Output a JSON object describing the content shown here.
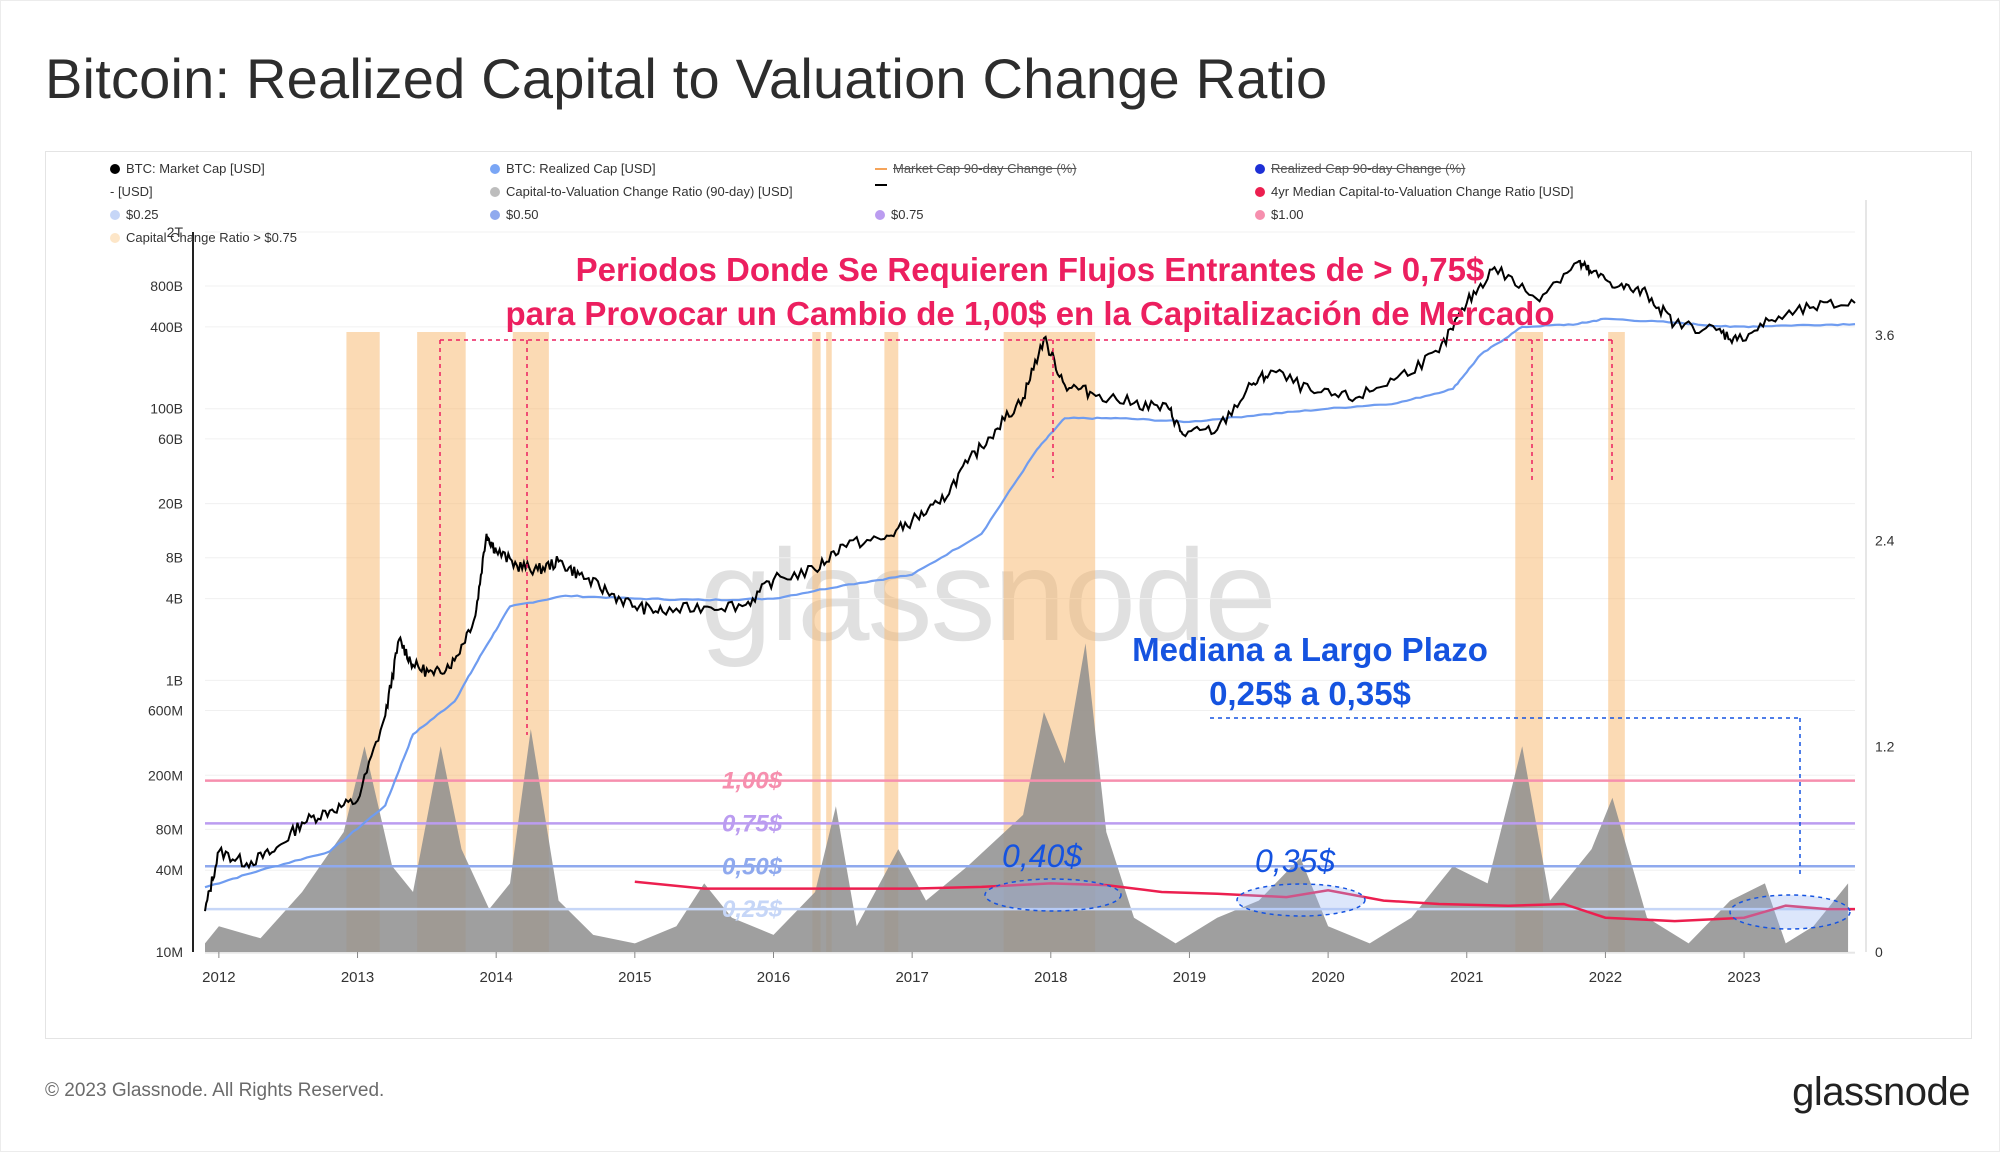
{
  "page": {
    "title": "Bitcoin: Realized Capital to Valuation Change Ratio",
    "footer_copyright": "© 2023 Glassnode. All Rights Reserved.",
    "footer_logo": "glassnode",
    "watermark": "glassnode"
  },
  "legend": [
    {
      "label": "BTC: Market Cap [USD]",
      "color": "#000000",
      "marker": "dot",
      "struck": false
    },
    {
      "label": "BTC: Realized Cap [USD]",
      "color": "#7aa6f5",
      "marker": "dot",
      "struck": false
    },
    {
      "label": "Market Cap 90-day Change (%)",
      "color": "#f5a45a",
      "marker": "line",
      "struck": true
    },
    {
      "label": "Realized Cap 90-day Change (%)",
      "color": "#1d2fd6",
      "marker": "dot",
      "struck": true
    },
    {
      "label": "- [USD]",
      "color": "#ffffff",
      "marker": "none",
      "struck": false
    },
    {
      "label": "Capital-to-Valuation Change Ratio (90-day) [USD]",
      "color": "#bdbdbd",
      "marker": "dot",
      "struck": false
    },
    {
      "label": "",
      "color": "#000000",
      "marker": "line",
      "struck": false
    },
    {
      "label": "4yr Median Capital-to-Valuation Change Ratio [USD]",
      "color": "#ec1f4f",
      "marker": "dot",
      "struck": false
    },
    {
      "label": "$0.25",
      "color": "#c6d6f7",
      "marker": "dot",
      "struck": false
    },
    {
      "label": "$0.50",
      "color": "#8fa9ee",
      "marker": "dot",
      "struck": false
    },
    {
      "label": "$0.75",
      "color": "#bb9cf0",
      "marker": "dot",
      "struck": false
    },
    {
      "label": "$1.00",
      "color": "#f68fae",
      "marker": "dot",
      "struck": false
    },
    {
      "label": "Capital Change Ratio > $0.75",
      "color": "#fde6c8",
      "marker": "dot",
      "struck": false
    }
  ],
  "annotations": {
    "main_line1": "Periodos Donde Se Requieren Flujos Entrantes de > 0,75$",
    "main_line2": "para Provocar un Cambio de 1,00$ en la Capitalización de Mercado",
    "median_line1": "Mediana a Largo Plazo",
    "median_line2": "0,25$ a 0,35$",
    "callout_2018": "0,40$",
    "callout_2020": "0,35$"
  },
  "chart_data": {
    "type": "line",
    "title": "Bitcoin: Realized Capital to Valuation Change Ratio",
    "x_axis": {
      "min": 2011.9,
      "max": 2023.8,
      "ticks": [
        "2012",
        "2013",
        "2014",
        "2015",
        "2016",
        "2017",
        "2018",
        "2019",
        "2020",
        "2021",
        "2022",
        "2023"
      ]
    },
    "y_left": {
      "scale": "log",
      "range": [
        10000000,
        2000000000000
      ],
      "tick_labels": [
        "10M",
        "40M",
        "80M",
        "200M",
        "600M",
        "1B",
        "4B",
        "8B",
        "20B",
        "60B",
        "100B",
        "400B",
        "800B",
        "2T"
      ],
      "tick_values": [
        10000000,
        40000000,
        80000000,
        200000000,
        600000000,
        1000000000,
        4000000000,
        8000000000,
        20000000000,
        60000000000,
        100000000000,
        400000000000,
        800000000000,
        2000000000000
      ]
    },
    "y_right": {
      "scale": "linear",
      "range": [
        0,
        4.2
      ],
      "tick_labels": [
        "0",
        "1.2",
        "2.4",
        "3.6"
      ],
      "tick_values": [
        0,
        1.2,
        2.4,
        3.6
      ]
    },
    "threshold_lines": [
      {
        "label": "1,00$",
        "value": 1.0,
        "color": "#f68fae"
      },
      {
        "label": "0,75$",
        "value": 0.75,
        "color": "#bb9cf0"
      },
      {
        "label": "0,50$",
        "value": 0.5,
        "color": "#8fa9ee"
      },
      {
        "label": "0,25$",
        "value": 0.25,
        "color": "#c6d6f7"
      }
    ],
    "series": [
      {
        "name": "BTC: Market Cap [USD]",
        "axis": "left",
        "color": "#000000",
        "points": [
          [
            2011.9,
            20000000
          ],
          [
            2012.0,
            55000000
          ],
          [
            2012.2,
            45000000
          ],
          [
            2012.4,
            55000000
          ],
          [
            2012.6,
            90000000
          ],
          [
            2012.8,
            110000000
          ],
          [
            2013.0,
            130000000
          ],
          [
            2013.2,
            550000000
          ],
          [
            2013.3,
            2000000000
          ],
          [
            2013.4,
            1300000000
          ],
          [
            2013.55,
            1100000000
          ],
          [
            2013.7,
            1400000000
          ],
          [
            2013.85,
            3000000000
          ],
          [
            2013.93,
            12000000000
          ],
          [
            2014.0,
            9000000000
          ],
          [
            2014.15,
            7000000000
          ],
          [
            2014.3,
            6500000000
          ],
          [
            2014.45,
            7500000000
          ],
          [
            2014.6,
            6000000000
          ],
          [
            2014.8,
            4500000000
          ],
          [
            2015.0,
            3500000000
          ],
          [
            2015.2,
            3200000000
          ],
          [
            2015.5,
            3500000000
          ],
          [
            2015.8,
            3600000000
          ],
          [
            2016.0,
            5500000000
          ],
          [
            2016.3,
            6500000000
          ],
          [
            2016.5,
            10000000000
          ],
          [
            2016.8,
            11000000000
          ],
          [
            2017.0,
            15000000000
          ],
          [
            2017.2,
            20000000000
          ],
          [
            2017.4,
            40000000000
          ],
          [
            2017.6,
            70000000000
          ],
          [
            2017.8,
            120000000000
          ],
          [
            2017.95,
            330000000000
          ],
          [
            2018.1,
            150000000000
          ],
          [
            2018.3,
            130000000000
          ],
          [
            2018.6,
            110000000000
          ],
          [
            2018.85,
            100000000000
          ],
          [
            2018.95,
            65000000000
          ],
          [
            2019.2,
            70000000000
          ],
          [
            2019.45,
            150000000000
          ],
          [
            2019.6,
            190000000000
          ],
          [
            2019.9,
            130000000000
          ],
          [
            2020.2,
            120000000000
          ],
          [
            2020.5,
            170000000000
          ],
          [
            2020.8,
            260000000000
          ],
          [
            2021.0,
            600000000000
          ],
          [
            2021.2,
            1100000000000
          ],
          [
            2021.5,
            650000000000
          ],
          [
            2021.8,
            1200000000000
          ],
          [
            2021.9,
            1000000000000
          ],
          [
            2022.1,
            800000000000
          ],
          [
            2022.3,
            700000000000
          ],
          [
            2022.5,
            420000000000
          ],
          [
            2022.8,
            380000000000
          ],
          [
            2022.95,
            320000000000
          ],
          [
            2023.2,
            450000000000
          ],
          [
            2023.5,
            560000000000
          ],
          [
            2023.8,
            600000000000
          ]
        ]
      },
      {
        "name": "BTC: Realized Cap [USD]",
        "axis": "left",
        "color": "#6f9cf0",
        "points": [
          [
            2011.9,
            30000000
          ],
          [
            2012.3,
            40000000
          ],
          [
            2012.8,
            55000000
          ],
          [
            2013.2,
            120000000
          ],
          [
            2013.4,
            400000000
          ],
          [
            2013.7,
            700000000
          ],
          [
            2013.9,
            1600000000
          ],
          [
            2014.1,
            3500000000
          ],
          [
            2014.5,
            4200000000
          ],
          [
            2015.0,
            4000000000
          ],
          [
            2015.5,
            3900000000
          ],
          [
            2016.0,
            4000000000
          ],
          [
            2016.5,
            5000000000
          ],
          [
            2017.0,
            6000000000
          ],
          [
            2017.5,
            12000000000
          ],
          [
            2017.9,
            50000000000
          ],
          [
            2018.1,
            85000000000
          ],
          [
            2018.5,
            85000000000
          ],
          [
            2019.0,
            80000000000
          ],
          [
            2019.5,
            90000000000
          ],
          [
            2020.0,
            100000000000
          ],
          [
            2020.5,
            110000000000
          ],
          [
            2020.9,
            140000000000
          ],
          [
            2021.1,
            250000000000
          ],
          [
            2021.4,
            400000000000
          ],
          [
            2021.8,
            420000000000
          ],
          [
            2022.0,
            460000000000
          ],
          [
            2022.5,
            430000000000
          ],
          [
            2022.9,
            400000000000
          ],
          [
            2023.3,
            410000000000
          ],
          [
            2023.8,
            420000000000
          ]
        ]
      },
      {
        "name": "Capital-to-Valuation Change Ratio (90-day) [USD]",
        "axis": "right",
        "color": "#9a9a9a",
        "points": [
          [
            2011.9,
            0.05
          ],
          [
            2012.0,
            0.15
          ],
          [
            2012.3,
            0.08
          ],
          [
            2012.6,
            0.35
          ],
          [
            2012.9,
            0.7
          ],
          [
            2013.05,
            1.2
          ],
          [
            2013.25,
            0.5
          ],
          [
            2013.4,
            0.35
          ],
          [
            2013.6,
            1.2
          ],
          [
            2013.75,
            0.6
          ],
          [
            2013.95,
            0.25
          ],
          [
            2014.1,
            0.4
          ],
          [
            2014.25,
            1.3
          ],
          [
            2014.45,
            0.3
          ],
          [
            2014.7,
            0.1
          ],
          [
            2015.0,
            0.05
          ],
          [
            2015.3,
            0.15
          ],
          [
            2015.5,
            0.4
          ],
          [
            2015.7,
            0.2
          ],
          [
            2016.0,
            0.1
          ],
          [
            2016.3,
            0.35
          ],
          [
            2016.45,
            0.85
          ],
          [
            2016.6,
            0.15
          ],
          [
            2016.9,
            0.6
          ],
          [
            2017.1,
            0.3
          ],
          [
            2017.4,
            0.5
          ],
          [
            2017.8,
            0.8
          ],
          [
            2017.95,
            1.4
          ],
          [
            2018.1,
            1.1
          ],
          [
            2018.25,
            1.8
          ],
          [
            2018.4,
            0.7
          ],
          [
            2018.6,
            0.2
          ],
          [
            2018.9,
            0.05
          ],
          [
            2019.2,
            0.2
          ],
          [
            2019.5,
            0.3
          ],
          [
            2019.8,
            0.55
          ],
          [
            2020.0,
            0.15
          ],
          [
            2020.3,
            0.05
          ],
          [
            2020.6,
            0.2
          ],
          [
            2020.9,
            0.5
          ],
          [
            2021.15,
            0.4
          ],
          [
            2021.4,
            1.2
          ],
          [
            2021.6,
            0.3
          ],
          [
            2021.9,
            0.6
          ],
          [
            2022.05,
            0.9
          ],
          [
            2022.3,
            0.2
          ],
          [
            2022.6,
            0.05
          ],
          [
            2022.9,
            0.3
          ],
          [
            2023.15,
            0.4
          ],
          [
            2023.3,
            0.05
          ],
          [
            2023.5,
            0.15
          ],
          [
            2023.75,
            0.4
          ]
        ]
      },
      {
        "name": "4yr Median Capital-to-Valuation Change Ratio [USD]",
        "axis": "right",
        "color": "#ec1f4f",
        "points": [
          [
            2015.0,
            0.41
          ],
          [
            2015.5,
            0.37
          ],
          [
            2016.0,
            0.37
          ],
          [
            2016.5,
            0.37
          ],
          [
            2017.0,
            0.37
          ],
          [
            2017.5,
            0.38
          ],
          [
            2018.0,
            0.4
          ],
          [
            2018.4,
            0.39
          ],
          [
            2018.8,
            0.35
          ],
          [
            2019.2,
            0.34
          ],
          [
            2019.7,
            0.32
          ],
          [
            2020.0,
            0.36
          ],
          [
            2020.4,
            0.3
          ],
          [
            2020.8,
            0.28
          ],
          [
            2021.3,
            0.27
          ],
          [
            2021.7,
            0.28
          ],
          [
            2022.0,
            0.2
          ],
          [
            2022.5,
            0.18
          ],
          [
            2023.0,
            0.2
          ],
          [
            2023.3,
            0.27
          ],
          [
            2023.6,
            0.25
          ],
          [
            2023.8,
            0.25
          ]
        ]
      }
    ],
    "highlight_periods": [
      {
        "start": 2012.92,
        "end": 2013.16,
        "label": "Capital Change Ratio > $0.75"
      },
      {
        "start": 2013.43,
        "end": 2013.78,
        "label": "Capital Change Ratio > $0.75"
      },
      {
        "start": 2014.12,
        "end": 2014.38,
        "label": "Capital Change Ratio > $0.75"
      },
      {
        "start": 2016.28,
        "end": 2016.34,
        "label": "Capital Change Ratio > $0.75"
      },
      {
        "start": 2016.38,
        "end": 2016.42,
        "label": "Capital Change Ratio > $0.75"
      },
      {
        "start": 2016.8,
        "end": 2016.9,
        "label": "Capital Change Ratio > $0.75"
      },
      {
        "start": 2017.66,
        "end": 2018.32,
        "label": "Capital Change Ratio > $0.75"
      },
      {
        "start": 2021.35,
        "end": 2021.55,
        "label": "Capital Change Ratio > $0.75"
      },
      {
        "start": 2022.02,
        "end": 2022.14,
        "label": "Capital Change Ratio > $0.75"
      }
    ]
  }
}
